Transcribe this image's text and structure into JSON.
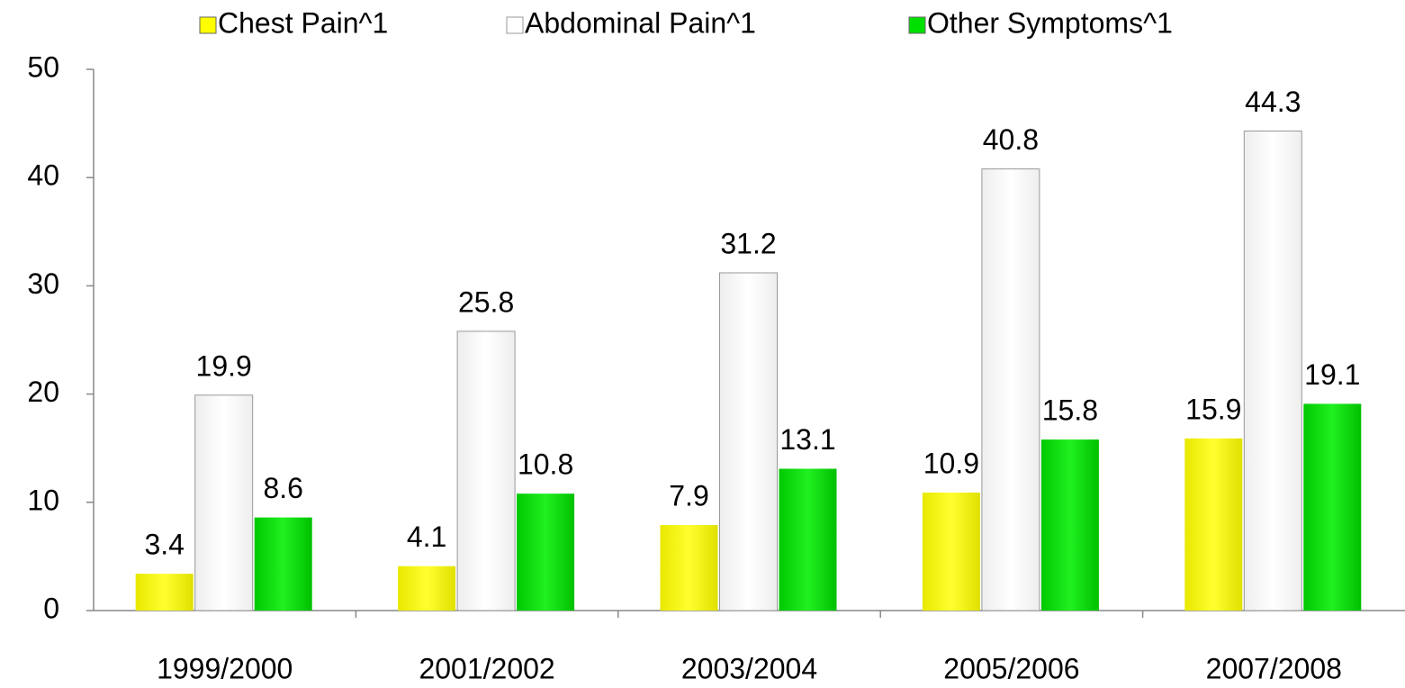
{
  "chart_data": {
    "type": "bar",
    "categories": [
      "1999/2000",
      "2001/2002",
      "2003/2004",
      "2005/2006",
      "2007/2008"
    ],
    "series": [
      {
        "name": "Chest Pain^1",
        "color": "#ffff00",
        "values": [
          3.4,
          4.1,
          7.9,
          10.9,
          15.9
        ]
      },
      {
        "name": "Abdominal Pain^1",
        "color": "#ffffff",
        "values": [
          19.9,
          25.8,
          31.2,
          40.8,
          44.3
        ]
      },
      {
        "name": "Other Symptoms^1",
        "color": "#00e000",
        "values": [
          8.6,
          10.8,
          13.1,
          15.8,
          19.1
        ]
      }
    ],
    "ylim": [
      0,
      50
    ],
    "yticks": [
      0,
      10,
      20,
      30,
      40,
      50
    ],
    "grid": false,
    "legend": "top"
  }
}
